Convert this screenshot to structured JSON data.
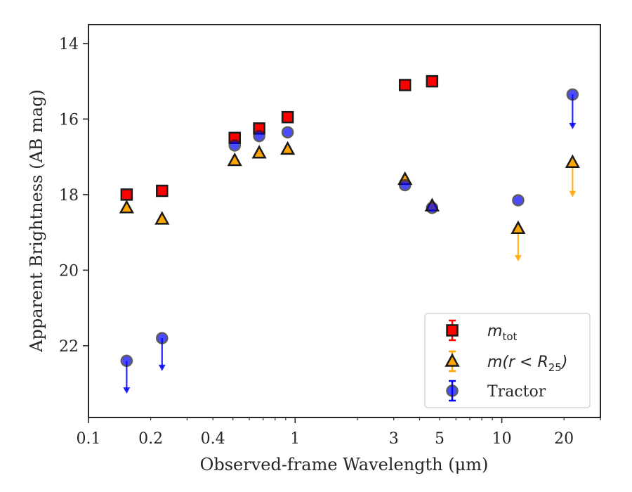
{
  "chart_data": {
    "type": "scatter",
    "xlabel": "Observed-frame Wavelength (μm)",
    "ylabel": "Apparent Brightness (AB mag)",
    "xscale": "log",
    "xlim": [
      0.1,
      30
    ],
    "ylim": [
      23.9,
      13.5
    ],
    "y_inverted": true,
    "grid": false,
    "legend_position": "lower-right",
    "x_ticks": [
      {
        "value": 0.1,
        "label": "0.1"
      },
      {
        "value": 0.2,
        "label": "0.2"
      },
      {
        "value": 0.4,
        "label": "0.4"
      },
      {
        "value": 1,
        "label": "1"
      },
      {
        "value": 3,
        "label": "3"
      },
      {
        "value": 5,
        "label": "5"
      },
      {
        "value": 10,
        "label": "10"
      },
      {
        "value": 20,
        "label": "20"
      }
    ],
    "y_ticks": [
      {
        "value": 14,
        "label": "14"
      },
      {
        "value": 16,
        "label": "16"
      },
      {
        "value": 18,
        "label": "18"
      },
      {
        "value": 20,
        "label": "20"
      },
      {
        "value": 22,
        "label": "22"
      }
    ],
    "series": [
      {
        "name": "m_tot",
        "legend_main": "m",
        "legend_sub": "tot",
        "marker": "square",
        "color": "#ff0000",
        "points": [
          {
            "x": 0.153,
            "y": 18.0
          },
          {
            "x": 0.227,
            "y": 17.9
          },
          {
            "x": 0.51,
            "y": 16.5
          },
          {
            "x": 0.67,
            "y": 16.25
          },
          {
            "x": 0.92,
            "y": 15.95
          },
          {
            "x": 3.4,
            "y": 15.1
          },
          {
            "x": 4.6,
            "y": 15.0
          }
        ]
      },
      {
        "name": "m(r < R25)",
        "legend_main": "m(r < R",
        "legend_sub": "25",
        "legend_close": ")",
        "marker": "triangle",
        "color": "#ffa500",
        "points": [
          {
            "x": 0.153,
            "y": 18.35
          },
          {
            "x": 0.227,
            "y": 18.65
          },
          {
            "x": 0.51,
            "y": 17.1
          },
          {
            "x": 0.67,
            "y": 16.9
          },
          {
            "x": 0.92,
            "y": 16.8
          },
          {
            "x": 3.4,
            "y": 17.6
          },
          {
            "x": 4.6,
            "y": 18.3
          },
          {
            "x": 12,
            "y": 18.9,
            "upper_limit_to": 19.75
          },
          {
            "x": 22,
            "y": 17.15,
            "upper_limit_to": 18.05
          }
        ]
      },
      {
        "name": "Tractor",
        "legend_main": "Tractor",
        "marker": "circle",
        "color": "#0000ff",
        "points": [
          {
            "x": 0.153,
            "y": 22.4,
            "upper_limit_to": 23.25
          },
          {
            "x": 0.227,
            "y": 21.8,
            "upper_limit_to": 22.65
          },
          {
            "x": 0.51,
            "y": 16.7
          },
          {
            "x": 0.67,
            "y": 16.45
          },
          {
            "x": 0.92,
            "y": 16.35
          },
          {
            "x": 3.4,
            "y": 17.75
          },
          {
            "x": 4.6,
            "y": 18.35
          },
          {
            "x": 12,
            "y": 18.15
          },
          {
            "x": 22,
            "y": 15.35,
            "upper_limit_to": 16.25
          }
        ]
      }
    ]
  }
}
